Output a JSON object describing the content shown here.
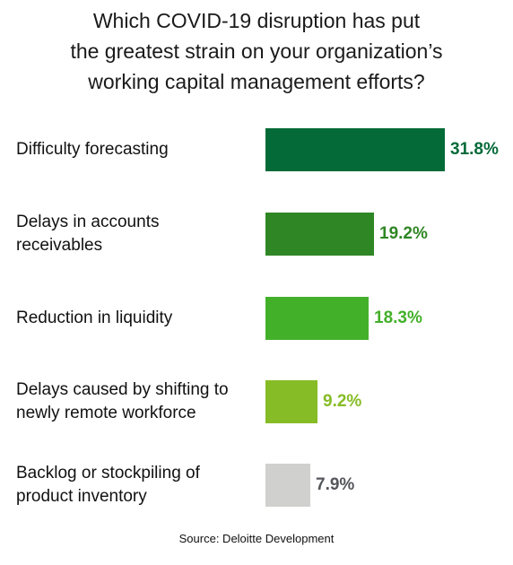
{
  "chart_data": {
    "type": "bar",
    "orientation": "horizontal",
    "title_lines": [
      "Which COVID-19 disruption has put",
      "the greatest strain on your organization’s",
      "working capital management efforts?"
    ],
    "categories": [
      [
        "Difficulty forecasting"
      ],
      [
        "Delays in accounts",
        "receivables"
      ],
      [
        "Reduction in liquidity"
      ],
      [
        "Delays caused by shifting to",
        "newly remote workforce"
      ],
      [
        "Backlog or stockpiling of",
        "product inventory"
      ]
    ],
    "values": [
      31.8,
      19.2,
      18.3,
      9.2,
      7.9
    ],
    "value_labels": [
      "31.8%",
      "19.2%",
      "18.3%",
      "9.2%",
      "7.9%"
    ],
    "bar_colors": [
      "#046a38",
      "#2f8624",
      "#43b02a",
      "#86bc25",
      "#d0d0ce"
    ],
    "label_colors": [
      "#046a38",
      "#2f8624",
      "#43b02a",
      "#86bc25",
      "#53565a"
    ],
    "xlim": [
      0,
      31.8
    ],
    "grid": false,
    "legend": "none"
  },
  "source": "Source: Deloitte Development"
}
